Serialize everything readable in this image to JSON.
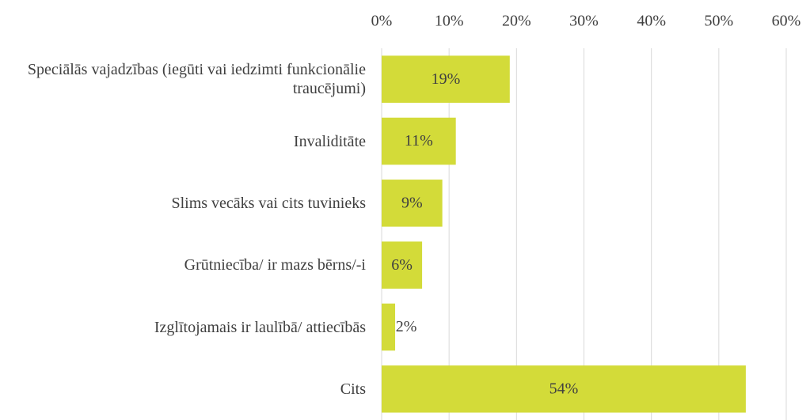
{
  "chart_data": {
    "type": "bar",
    "orientation": "horizontal",
    "categories": [
      "Speciālās vajadzības (iegūti vai iedzimti funkcionālie traucējumi)",
      "Invaliditāte",
      "Slims vecāks vai cits tuvinieks",
      "Grūtniecība/ ir mazs bērns/-i",
      "Izglītojamais ir laulībā/ attiecībās",
      "Cits"
    ],
    "values": [
      19,
      11,
      9,
      6,
      2,
      54
    ],
    "value_labels": [
      "19%",
      "11%",
      "9%",
      "6%",
      "2%",
      "54%"
    ],
    "color": "#d3db39",
    "xlim": [
      0,
      60
    ],
    "xticks": [
      {
        "value": 0,
        "label": "0%"
      },
      {
        "value": 10,
        "label": "10%"
      },
      {
        "value": 20,
        "label": "20%"
      },
      {
        "value": 30,
        "label": "30%"
      },
      {
        "value": 40,
        "label": "40%"
      },
      {
        "value": 50,
        "label": "50%"
      },
      {
        "value": 60,
        "label": "60%"
      }
    ],
    "grid": true
  }
}
